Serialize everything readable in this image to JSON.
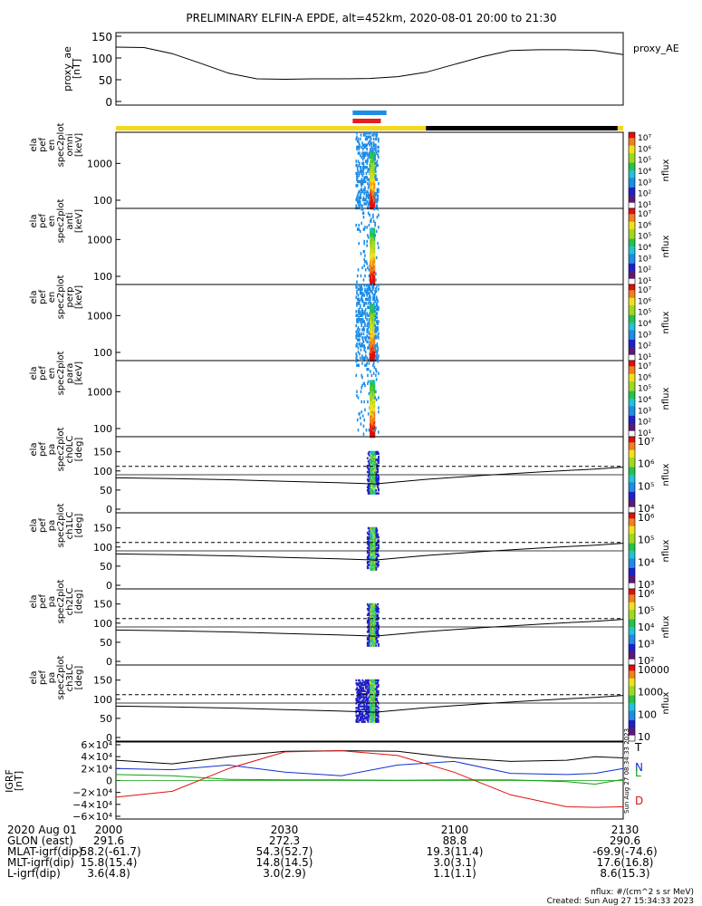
{
  "title": "PRELIMINARY ELFIN-A EPDE, alt=452km, 2020-08-01 20:00 to 21:30",
  "colors": {
    "science_bar": "#1e8ce6",
    "fgm_bar": "#e61e1e",
    "sunlit": "#f5d71e",
    "shadow": "#000000",
    "ae_line": "#000000",
    "igrf_T": "#000000",
    "igrf_N": "#1030d0",
    "igrf_L": "#10a010",
    "igrf_D": "#e01010",
    "threshold": "#000000"
  },
  "colorbar_stops": [
    "#ffffff",
    "#5a1a78",
    "#2020c8",
    "#1e8ce6",
    "#21c4d6",
    "#26c24a",
    "#a0d820",
    "#f0e020",
    "#f08020",
    "#e01010"
  ],
  "orbit_bars": {
    "science_label": "",
    "fgm_label": ""
  },
  "panels": {
    "ae": {
      "ylabel": [
        "proxy_ae",
        "[nT]"
      ],
      "yticks": [
        "150",
        "100",
        "50",
        "0"
      ],
      "legend": "proxy_AE"
    },
    "spec": [
      {
        "ylabel": [
          "ela",
          "pef",
          "en",
          "spec2plot",
          "omni",
          "[keV]"
        ],
        "yticks": [
          "1000",
          "100"
        ],
        "cb_ticks": [
          "10⁷",
          "10⁶",
          "10⁵",
          "10⁴",
          "10³",
          "10²",
          "10¹"
        ],
        "cb_label": "nflux"
      },
      {
        "ylabel": [
          "ela",
          "pef",
          "en",
          "spec2plot",
          "anti",
          "[keV]"
        ],
        "yticks": [
          "1000",
          "100"
        ],
        "cb_ticks": [
          "10⁷",
          "10⁶",
          "10⁵",
          "10⁴",
          "10³",
          "10²",
          "10¹"
        ],
        "cb_label": "nflux"
      },
      {
        "ylabel": [
          "ela",
          "pef",
          "en",
          "spec2plot",
          "perp",
          "[keV]"
        ],
        "yticks": [
          "1000",
          "100"
        ],
        "cb_ticks": [
          "10⁷",
          "10⁶",
          "10⁵",
          "10⁴",
          "10³",
          "10²",
          "10¹"
        ],
        "cb_label": "nflux"
      },
      {
        "ylabel": [
          "ela",
          "pef",
          "en",
          "spec2plot",
          "para",
          "[keV]"
        ],
        "yticks": [
          "1000",
          "100"
        ],
        "cb_ticks": [
          "10⁷",
          "10⁶",
          "10⁵",
          "10⁴",
          "10³",
          "10²",
          "10¹"
        ],
        "cb_label": "nflux"
      }
    ],
    "pa": [
      {
        "ylabel": [
          "ela",
          "pef",
          "pa",
          "spec2plot",
          "ch0LC",
          "[deg]"
        ],
        "yticks": [
          "150",
          "100",
          "50",
          "0"
        ],
        "cb_ticks": [
          "10⁷",
          "10⁶",
          "10⁵",
          "10⁴"
        ],
        "cb_label": "nflux"
      },
      {
        "ylabel": [
          "ela",
          "pef",
          "pa",
          "spec2plot",
          "ch1LC",
          "[deg]"
        ],
        "yticks": [
          "150",
          "100",
          "50",
          "0"
        ],
        "cb_ticks": [
          "10⁶",
          "10⁵",
          "10⁴",
          "10³"
        ],
        "cb_label": "nflux"
      },
      {
        "ylabel": [
          "ela",
          "pef",
          "pa",
          "spec2plot",
          "ch2LC",
          "[deg]"
        ],
        "yticks": [
          "150",
          "100",
          "50",
          "0"
        ],
        "cb_ticks": [
          "10⁶",
          "10⁵",
          "10⁴",
          "10³",
          "10²"
        ],
        "cb_label": "nflux"
      },
      {
        "ylabel": [
          "ela",
          "pef",
          "pa",
          "spec2plot",
          "ch3LC",
          "[deg]"
        ],
        "yticks": [
          "150",
          "100",
          "50",
          "0"
        ],
        "cb_ticks": [
          "10000",
          "1000",
          "100",
          "10"
        ],
        "cb_label": "nflux"
      }
    ],
    "igrf": {
      "ylabel": [
        "IGRF",
        "[nT]"
      ],
      "yticks": [
        "6×10⁴",
        "4×10⁴",
        "2×10⁴",
        "0",
        "−2×10⁴",
        "−4×10⁴",
        "−6×10⁴"
      ],
      "legend": [
        "T",
        "N",
        "L",
        "D"
      ],
      "stamp": "Sun Aug 27 08:34:33 2023"
    }
  },
  "bottom_table": {
    "rows": [
      {
        "label": "2020 Aug 01",
        "values": [
          "2000",
          "2030",
          "2100",
          "2130"
        ]
      },
      {
        "label": "GLON (east)",
        "values": [
          "291.6",
          "272.3",
          "88.8",
          "290.6"
        ]
      },
      {
        "label": "MLAT-igrf(dip)",
        "values": [
          "-58.2(-61.7)",
          "54.3(52.7)",
          "19.3(11.4)",
          "-69.9(-74.6)"
        ]
      },
      {
        "label": "MLT-igrf(dip)",
        "values": [
          "15.8(15.4)",
          "14.8(14.5)",
          "3.0(3.1)",
          "17.6(16.8)"
        ]
      },
      {
        "label": "L-igrf(dip)",
        "values": [
          "3.6(4.8)",
          "3.0(2.9)",
          "1.1(1.1)",
          "8.6(15.3)"
        ]
      }
    ]
  },
  "footer": {
    "units": "nflux: #/(cm^2 s sr MeV)",
    "created": "Created: Sun Aug 27 15:34:33 2023"
  },
  "chart_data": {
    "type": "line",
    "title": "PRELIMINARY ELFIN-A EPDE, alt=452km, 2020-08-01 20:00 to 21:30",
    "x_range_min": [
      0,
      90
    ],
    "xtick_labels": [
      "2000",
      "2030",
      "2100",
      "2130"
    ],
    "proxy_ae": {
      "ylabel": "proxy_ae [nT]",
      "ylim": [
        0,
        150
      ],
      "x": [
        0,
        5,
        10,
        15,
        20,
        25,
        30,
        35,
        40,
        45,
        50,
        55,
        60,
        65,
        70,
        75,
        80,
        85,
        90
      ],
      "y": [
        125,
        124,
        110,
        88,
        65,
        52,
        51,
        52,
        52,
        53,
        57,
        67,
        85,
        103,
        117,
        119,
        119,
        117,
        108
      ]
    },
    "science_interval_min": [
      42,
      48
    ],
    "fgm_interval_min": [
      42,
      47
    ],
    "sunlit_segments_min": [
      [
        0,
        55
      ],
      [
        89,
        90
      ]
    ],
    "shadow_segments_min": [
      [
        55,
        89
      ]
    ],
    "spectrograms": {
      "energy_ylim_keV": [
        60,
        7000
      ],
      "energy_ticks_keV": [
        100,
        1000
      ],
      "burst_min": [
        42.5,
        46.5
      ],
      "colorbar_log": true,
      "channels": [
        "omni",
        "anti",
        "perp",
        "para"
      ]
    },
    "pitch_angle": {
      "ylim_deg": [
        0,
        180
      ],
      "yticks_deg": [
        0,
        50,
        100,
        150
      ],
      "loss_cone_deg": {
        "x": [
          0,
          10,
          20,
          30,
          40,
          46,
          55,
          65,
          75,
          85,
          90
        ],
        "y": [
          82,
          80,
          77,
          73,
          69,
          66,
          78,
          88,
          97,
          105,
          110
        ]
      },
      "anti_loss_cone_deg": {
        "x": [
          0,
          10,
          20,
          30,
          40,
          46,
          55,
          65,
          75,
          85,
          90
        ],
        "y": [
          98,
          100,
          103,
          107,
          111,
          114,
          102,
          92,
          83,
          75,
          70
        ]
      },
      "dashed_level_deg": 112,
      "solid_level_deg": 90,
      "channels": [
        "ch0LC",
        "ch1LC",
        "ch2LC",
        "ch3LC"
      ]
    },
    "igrf": {
      "ylabel": "IGRF [nT]",
      "ylim": [
        -60000,
        60000
      ],
      "x": [
        0,
        10,
        20,
        30,
        40,
        50,
        60,
        70,
        80,
        85,
        90
      ],
      "series": [
        {
          "name": "T",
          "values": [
            34000,
            28000,
            40000,
            49000,
            50000,
            49000,
            38000,
            32000,
            34000,
            40000,
            38000
          ]
        },
        {
          "name": "N",
          "values": [
            20000,
            18000,
            26000,
            14000,
            8000,
            26000,
            32000,
            12000,
            10000,
            12000,
            20000
          ]
        },
        {
          "name": "L",
          "values": [
            10000,
            8000,
            2000,
            1000,
            1000,
            500,
            1000,
            1000,
            -2000,
            -6000,
            2000
          ]
        },
        {
          "name": "D",
          "values": [
            -28000,
            -18000,
            20000,
            48000,
            50000,
            42000,
            14000,
            -24000,
            -44000,
            -45000,
            -44000
          ]
        }
      ]
    }
  }
}
